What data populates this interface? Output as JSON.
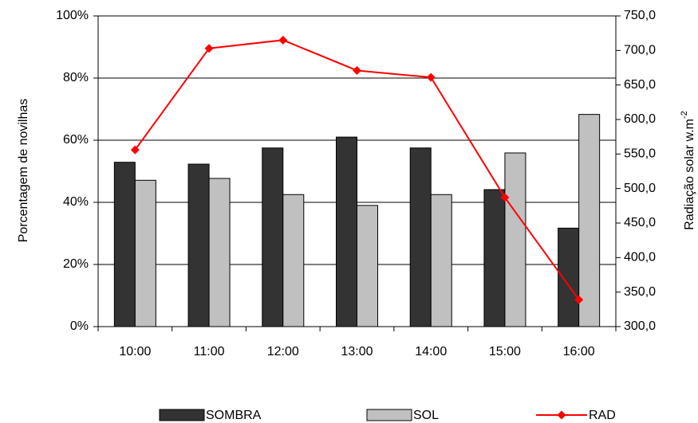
{
  "chart_data": {
    "type": "bar",
    "categories": [
      "10:00",
      "11:00",
      "12:00",
      "13:00",
      "14:00",
      "15:00",
      "16:00"
    ],
    "series": [
      {
        "name": "SOMBRA",
        "type": "bar",
        "axis": "left",
        "color": "#333333",
        "values": [
          52.9,
          52.3,
          57.5,
          61.0,
          57.5,
          44.1,
          31.7
        ]
      },
      {
        "name": "SOL",
        "type": "bar",
        "axis": "left",
        "color": "#c0c0c0",
        "values": [
          47.1,
          47.7,
          42.5,
          39.0,
          42.5,
          55.9,
          68.3
        ]
      },
      {
        "name": "RAD",
        "type": "line",
        "axis": "right",
        "color": "#ff0000",
        "values": [
          556,
          703,
          715,
          671,
          661,
          487,
          339
        ]
      }
    ],
    "y_left": {
      "label": "Porcentagem de novilhas",
      "min": 0,
      "max": 100,
      "ticks": [
        0,
        20,
        40,
        60,
        80,
        100
      ],
      "tick_labels": [
        "0%",
        "20%",
        "40%",
        "60%",
        "80%",
        "100%"
      ]
    },
    "y_right": {
      "label": "Radiação solar w.m",
      "label_sup": "-2",
      "min": 300,
      "max": 750,
      "ticks": [
        300,
        350,
        400,
        450,
        500,
        550,
        600,
        650,
        700,
        750
      ],
      "tick_labels": [
        "300,0",
        "350,0",
        "400,0",
        "450,0",
        "500,0",
        "550,0",
        "600,0",
        "650,0",
        "700,0",
        "750,0"
      ]
    },
    "grid": true,
    "legend_position": "bottom"
  }
}
